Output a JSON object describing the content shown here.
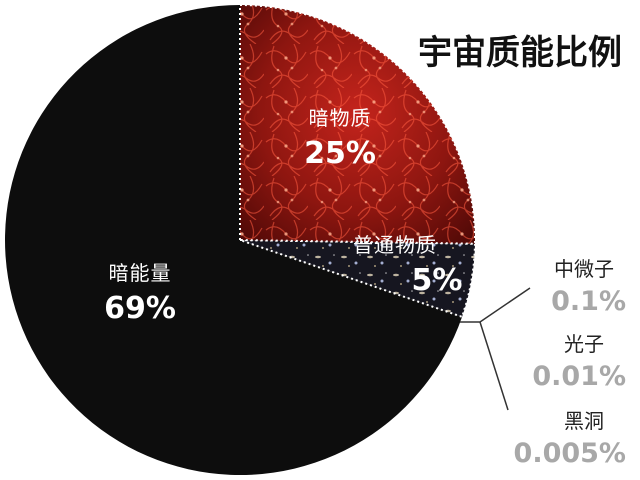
{
  "chart_data": {
    "type": "pie",
    "title": "宇宙质能比例",
    "slices": [
      {
        "name": "暗能量",
        "value": 69,
        "label": "69%",
        "color": "#0d0d0d"
      },
      {
        "name": "暗物质",
        "value": 25,
        "label": "25%",
        "color": "#8a1212"
      },
      {
        "name": "普通物质",
        "value": 5,
        "label": "5%",
        "color": "#1a1a24"
      }
    ],
    "breakout": [
      {
        "name": "中微子",
        "value": 0.1,
        "label": "0.1%"
      },
      {
        "name": "光子",
        "value": 0.01,
        "label": "0.01%"
      },
      {
        "name": "黑洞",
        "value": 0.005,
        "label": "0.005%"
      }
    ]
  }
}
